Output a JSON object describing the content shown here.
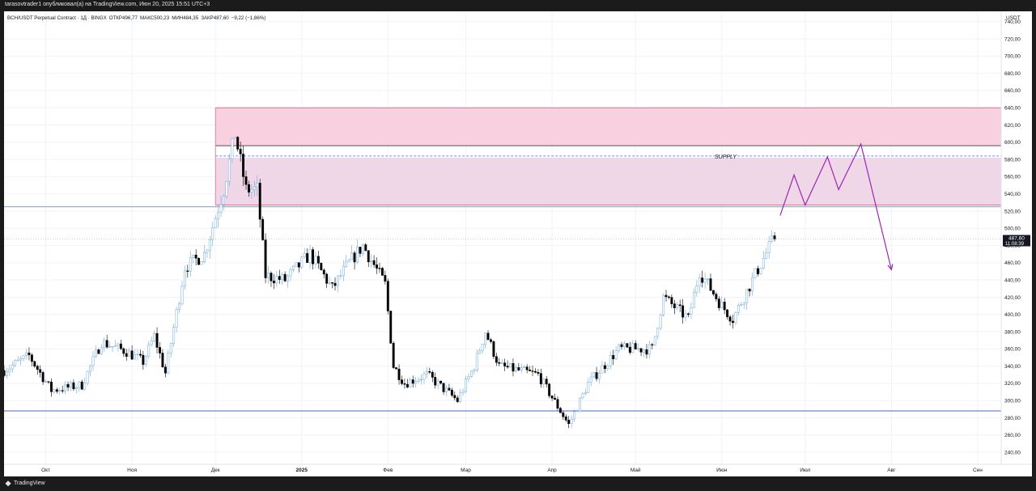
{
  "header": {
    "publish_line": "tarasovtrader1 опубликовал(а) на TradingView.com, Июн 20, 2025 15:51 UTC+3"
  },
  "legend": {
    "symbol": "BCH/USDT Perpetual Contract · 1Д · BINGX",
    "open": "ОТКР496,77",
    "high": "МАКС500,23",
    "low": "МИН484,35",
    "close": "ЗАКР487,60",
    "change": "−9,22 (−1,86%)"
  },
  "footer": {
    "logo_icon": "tradingview-logo-icon",
    "brand": "TradingView"
  },
  "chart_data": {
    "type": "candlestick",
    "symbol": "BCH/USDT Perpetual Contract",
    "interval": "1Д",
    "exchange": "BINGX",
    "currency_label": "USDT",
    "ylim": [
      226,
      752
    ],
    "y_ticks": [
      240,
      260,
      280,
      300,
      320,
      340,
      360,
      380,
      400,
      420,
      440,
      460,
      480,
      500,
      520,
      540,
      560,
      580,
      600,
      620,
      640,
      660,
      680,
      700,
      720,
      740
    ],
    "y_tick_labels": [
      "240,00",
      "260,00",
      "280,00",
      "300,00",
      "320,00",
      "340,00",
      "360,00",
      "380,00",
      "400,00",
      "420,00",
      "440,00",
      "460,00",
      "480,00",
      "500,00",
      "520,00",
      "540,00",
      "560,00",
      "580,00",
      "600,00",
      "620,00",
      "640,00",
      "660,00",
      "680,00",
      "700,00",
      "720,00",
      "740,00"
    ],
    "x_labels": [
      {
        "label": "Окт",
        "date": "2024-10-01"
      },
      {
        "label": "Ноя",
        "date": "2024-11-01"
      },
      {
        "label": "Дек",
        "date": "2024-12-01"
      },
      {
        "label": "2025",
        "date": "2025-01-01",
        "bold": true
      },
      {
        "label": "Фев",
        "date": "2025-02-01"
      },
      {
        "label": "Мар",
        "date": "2025-03-01"
      },
      {
        "label": "Апр",
        "date": "2025-04-01"
      },
      {
        "label": "Май",
        "date": "2025-05-01"
      },
      {
        "label": "Июн",
        "date": "2025-06-01"
      },
      {
        "label": "Июл",
        "date": "2025-07-01"
      },
      {
        "label": "Авг",
        "date": "2025-08-01"
      },
      {
        "label": "Сен",
        "date": "2025-09-01"
      }
    ],
    "last_price": {
      "label": "487,60",
      "countdown": "11:08:39",
      "value": 487.6
    },
    "supply_zone": {
      "label": "SUPPLY",
      "from_date": "2024-12-01",
      "upper_zone": [
        596,
        640
      ],
      "lower_zone": [
        527,
        582
      ],
      "top_line": 640,
      "mid_line": 596,
      "dashed_line": 584,
      "bottom_lines": [
        527,
        525
      ]
    },
    "support_line": 288,
    "forecast_path": [
      {
        "date": "2025-06-22",
        "price": 515
      },
      {
        "date": "2025-06-27",
        "price": 562
      },
      {
        "date": "2025-07-01",
        "price": 527
      },
      {
        "date": "2025-07-09",
        "price": 583
      },
      {
        "date": "2025-07-13",
        "price": 545
      },
      {
        "date": "2025-07-21",
        "price": 598
      },
      {
        "date": "2025-08-01",
        "price": 452
      }
    ],
    "price_path": [
      {
        "date": "2024-09-16",
        "price": 335
      },
      {
        "date": "2024-09-25",
        "price": 352
      },
      {
        "date": "2024-10-03",
        "price": 312
      },
      {
        "date": "2024-10-14",
        "price": 318
      },
      {
        "date": "2024-10-21",
        "price": 368
      },
      {
        "date": "2024-10-30",
        "price": 357
      },
      {
        "date": "2024-11-05",
        "price": 345
      },
      {
        "date": "2024-11-09",
        "price": 375
      },
      {
        "date": "2024-11-13",
        "price": 332
      },
      {
        "date": "2024-11-20",
        "price": 455
      },
      {
        "date": "2024-11-27",
        "price": 470
      },
      {
        "date": "2024-12-04",
        "price": 545
      },
      {
        "date": "2024-12-08",
        "price": 610
      },
      {
        "date": "2024-12-12",
        "price": 545
      },
      {
        "date": "2024-12-16",
        "price": 545
      },
      {
        "date": "2024-12-19",
        "price": 445
      },
      {
        "date": "2024-12-26",
        "price": 440
      },
      {
        "date": "2025-01-04",
        "price": 470
      },
      {
        "date": "2025-01-12",
        "price": 430
      },
      {
        "date": "2025-01-18",
        "price": 460
      },
      {
        "date": "2025-01-23",
        "price": 480
      },
      {
        "date": "2025-01-31",
        "price": 435
      },
      {
        "date": "2025-02-03",
        "price": 340
      },
      {
        "date": "2025-02-07",
        "price": 320
      },
      {
        "date": "2025-02-15",
        "price": 330
      },
      {
        "date": "2025-02-26",
        "price": 300
      },
      {
        "date": "2025-03-04",
        "price": 340
      },
      {
        "date": "2025-03-08",
        "price": 380
      },
      {
        "date": "2025-03-13",
        "price": 340
      },
      {
        "date": "2025-03-27",
        "price": 330
      },
      {
        "date": "2025-04-07",
        "price": 272
      },
      {
        "date": "2025-04-14",
        "price": 320
      },
      {
        "date": "2025-04-25",
        "price": 360
      },
      {
        "date": "2025-05-07",
        "price": 360
      },
      {
        "date": "2025-05-11",
        "price": 420
      },
      {
        "date": "2025-05-20",
        "price": 395
      },
      {
        "date": "2025-05-24",
        "price": 450
      },
      {
        "date": "2025-06-01",
        "price": 410
      },
      {
        "date": "2025-06-05",
        "price": 395
      },
      {
        "date": "2025-06-12",
        "price": 440
      },
      {
        "date": "2025-06-20",
        "price": 490
      }
    ],
    "colors": {
      "up_candle": "#6fa8dc",
      "down_candle": "#000000",
      "zone_upper": "#f8d0df",
      "zone_lower": "#f0d7e8",
      "zone_line": "#d9708f",
      "mid_line": "#555555",
      "dashed_line": "#4a5ff0",
      "support_line": "#4a5ff0",
      "forecast": "#9c27b0"
    }
  }
}
